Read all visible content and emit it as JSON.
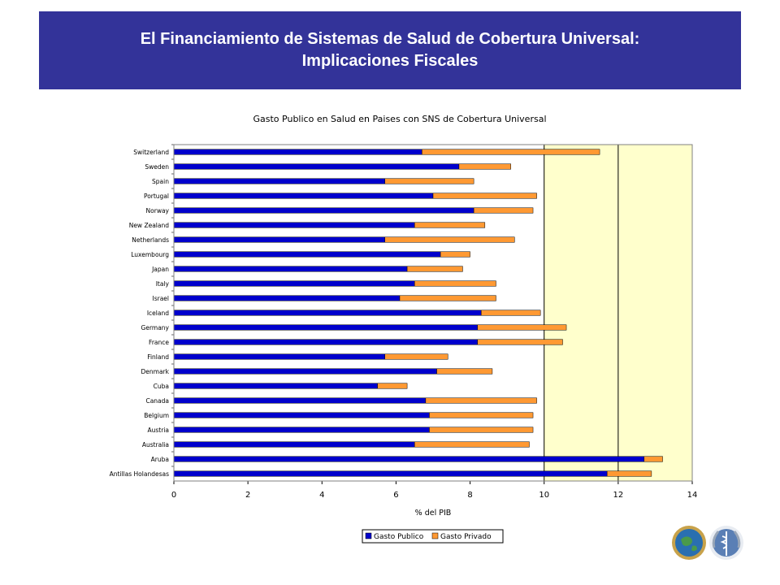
{
  "header": {
    "line1": "El Financiamiento de Sistemas de Salud de Cobertura Universal:",
    "line2": "Implicaciones Fiscales"
  },
  "colors": {
    "header_bg": "#333399",
    "publico": "#0000CC",
    "privado": "#FF9933",
    "plot_bg": "#FFFFCC"
  },
  "logos": [
    "paho-globe-logo",
    "who-emblem-logo"
  ],
  "chart_data": {
    "type": "bar",
    "orientation": "horizontal",
    "stacked": true,
    "title": "Gasto Publico en Salud en Paises con SNS de Cobertura Universal",
    "xlabel": "% del PIB",
    "ylabel": "",
    "xlim": [
      0,
      14
    ],
    "xticks": [
      0,
      2,
      4,
      6,
      8,
      10,
      12,
      14
    ],
    "grid": "vertical lines at 10 and 12",
    "legend_position": "bottom",
    "categories": [
      "Switzerland",
      "Sweden",
      "Spain",
      "Portugal",
      "Norway",
      "New Zealand",
      "Netherlands",
      "Luxembourg",
      "Japan",
      "Italy",
      "Israel",
      "Iceland",
      "Germany",
      "France",
      "Finland",
      "Denmark",
      "Cuba",
      "Canada",
      "Belgium",
      "Austria",
      "Australia",
      "Aruba",
      "Antillas Holandesas"
    ],
    "series": [
      {
        "name": "Gasto Publico",
        "values": [
          6.7,
          7.7,
          5.7,
          7.0,
          8.1,
          6.5,
          5.7,
          7.2,
          6.3,
          6.5,
          6.1,
          8.3,
          8.2,
          8.2,
          5.7,
          7.1,
          5.5,
          6.8,
          6.9,
          6.9,
          6.5,
          12.7,
          11.7
        ]
      },
      {
        "name": "Gasto Privado",
        "values": [
          4.8,
          1.4,
          2.4,
          2.8,
          1.6,
          1.9,
          3.5,
          0.8,
          1.5,
          2.2,
          2.6,
          1.6,
          2.4,
          2.3,
          1.7,
          1.5,
          0.8,
          3.0,
          2.8,
          2.8,
          3.1,
          0.5,
          1.2
        ]
      }
    ]
  }
}
